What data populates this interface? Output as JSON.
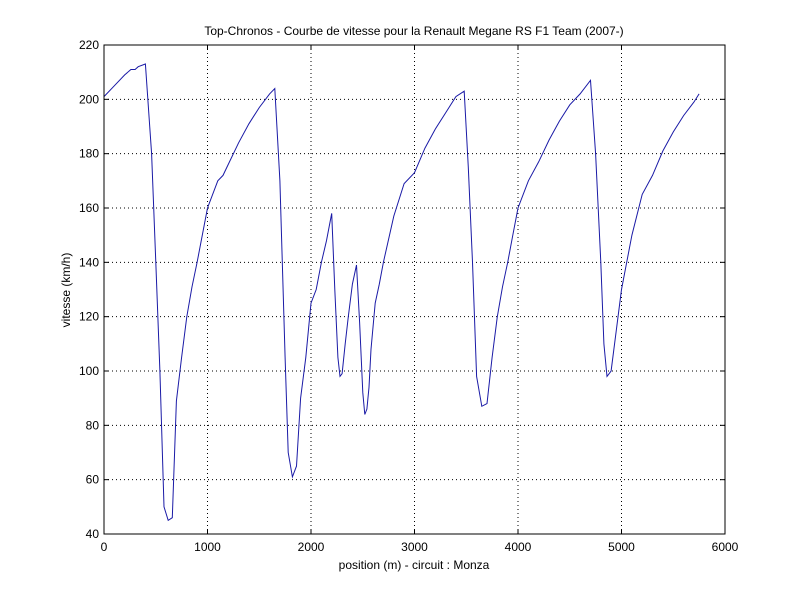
{
  "chart_data": {
    "type": "line",
    "title": "Top-Chronos - Courbe de vitesse pour la Renault Megane RS F1 Team (2007-)",
    "xlabel": "position (m) - circuit : Monza",
    "ylabel": "vitesse (km/h)",
    "xlim": [
      0,
      6000
    ],
    "ylim": [
      40,
      220
    ],
    "xticks": [
      0,
      1000,
      2000,
      3000,
      4000,
      5000,
      6000
    ],
    "yticks": [
      40,
      60,
      80,
      100,
      120,
      140,
      160,
      180,
      200,
      220
    ],
    "grid": true,
    "line_color": "#1a1aa6",
    "series": [
      {
        "x": [
          0,
          100,
          200,
          260,
          300,
          330,
          400,
          460,
          500,
          540,
          580,
          620,
          660,
          700,
          750,
          800,
          850,
          900,
          1000,
          1100,
          1150,
          1200,
          1300,
          1400,
          1500,
          1600,
          1650,
          1700,
          1750,
          1780,
          1820,
          1860,
          1900,
          1950,
          2000,
          2050,
          2100,
          2150,
          2200,
          2230,
          2260,
          2280,
          2300,
          2330,
          2360,
          2400,
          2440,
          2470,
          2500,
          2520,
          2540,
          2560,
          2580,
          2620,
          2660,
          2700,
          2800,
          2900,
          3000,
          3100,
          3200,
          3300,
          3400,
          3480,
          3520,
          3560,
          3600,
          3650,
          3700,
          3750,
          3800,
          3850,
          3900,
          3950,
          4000,
          4100,
          4200,
          4300,
          4400,
          4500,
          4600,
          4700,
          4750,
          4800,
          4830,
          4860,
          4900,
          4950,
          5000,
          5050,
          5100,
          5200,
          5300,
          5400,
          5500,
          5600,
          5700,
          5750
        ],
        "y": [
          201,
          205,
          209,
          211,
          211,
          212,
          213,
          180,
          140,
          100,
          50,
          45,
          46,
          89,
          105,
          120,
          131,
          140,
          160,
          170,
          172,
          176,
          184,
          191,
          197,
          202,
          204,
          170,
          105,
          70,
          61,
          65,
          90,
          105,
          125,
          130,
          140,
          148,
          158,
          130,
          105,
          98,
          99,
          110,
          120,
          132,
          139,
          118,
          92,
          84,
          86,
          94,
          108,
          125,
          132,
          140,
          157,
          169,
          173,
          182,
          189,
          195,
          201,
          203,
          175,
          140,
          98,
          87,
          88,
          105,
          120,
          131,
          140,
          150,
          160,
          170,
          177,
          185,
          192,
          198,
          202,
          207,
          180,
          140,
          110,
          98,
          100,
          115,
          130,
          140,
          150,
          165,
          172,
          181,
          188,
          194,
          199,
          202
        ]
      }
    ]
  }
}
